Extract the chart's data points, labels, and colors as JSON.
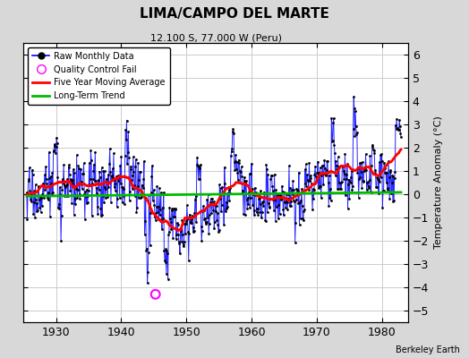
{
  "title": "LIMA/CAMPO DEL MARTE",
  "subtitle": "12.100 S, 77.000 W (Peru)",
  "ylabel": "Temperature Anomaly (°C)",
  "xlabel_credit": "Berkeley Earth",
  "year_start": 1925.5,
  "year_end": 1983.0,
  "ylim": [
    -5.5,
    6.5
  ],
  "yticks": [
    -5,
    -4,
    -3,
    -2,
    -1,
    0,
    1,
    2,
    3,
    4,
    5,
    6
  ],
  "xlim": [
    1925,
    1984
  ],
  "xticks": [
    1930,
    1940,
    1950,
    1960,
    1970,
    1980
  ],
  "bg_color": "#d8d8d8",
  "plot_bg_color": "#ffffff",
  "line_color": "#0000ff",
  "marker_color": "#000000",
  "moving_avg_color": "#ff0000",
  "trend_color": "#00bb00",
  "qc_fail_color": "#ff00ff",
  "qc_fail_year": 1945.25,
  "qc_fail_value": -4.3,
  "grid_color": "#cccccc"
}
